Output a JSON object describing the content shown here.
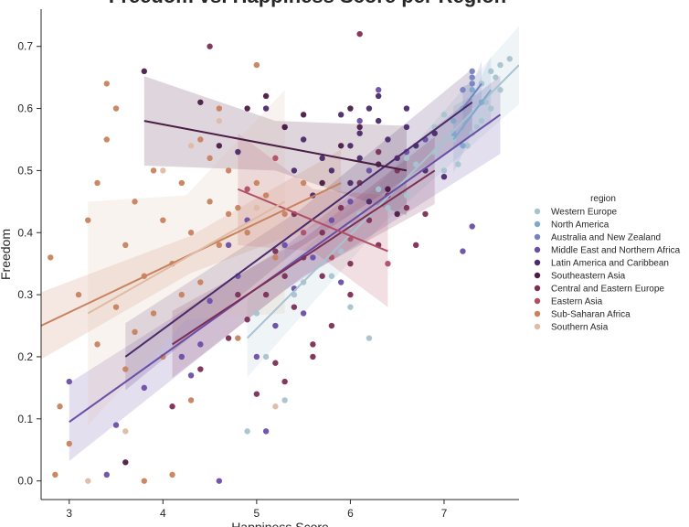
{
  "chart_data": {
    "type": "scatter",
    "title": "Freedom vs. Happiness Score per Region",
    "xlabel": "Happiness Score",
    "ylabel": "Freedom",
    "xlim": [
      2.7,
      7.8
    ],
    "ylim": [
      -0.03,
      0.76
    ],
    "xticks": [
      3,
      4,
      5,
      6,
      7
    ],
    "yticks": [
      0.0,
      0.1,
      0.2,
      0.3,
      0.4,
      0.5,
      0.6,
      0.7
    ],
    "grid": false,
    "legend": {
      "title": "region",
      "placement": "right"
    },
    "series": [
      {
        "name": "Western Europe",
        "color": "#a8c3cf",
        "regression": [
          [
            4.9,
            0.23
          ],
          [
            7.8,
            0.67
          ]
        ],
        "ci_halfwidth": 0.035,
        "points": [
          [
            7.5,
            0.66
          ],
          [
            7.6,
            0.67
          ],
          [
            7.4,
            0.64
          ],
          [
            7.3,
            0.62
          ],
          [
            7.5,
            0.6
          ],
          [
            7.6,
            0.63
          ],
          [
            7.4,
            0.58
          ],
          [
            7.2,
            0.6
          ],
          [
            7.0,
            0.59
          ],
          [
            6.9,
            0.57
          ],
          [
            7.3,
            0.56
          ],
          [
            7.1,
            0.55
          ],
          [
            6.9,
            0.53
          ],
          [
            6.8,
            0.55
          ],
          [
            7.0,
            0.5
          ],
          [
            6.7,
            0.51
          ],
          [
            6.6,
            0.52
          ],
          [
            6.5,
            0.5
          ],
          [
            6.6,
            0.46
          ],
          [
            6.4,
            0.44
          ],
          [
            6.3,
            0.47
          ],
          [
            6.1,
            0.43
          ],
          [
            6.0,
            0.41
          ],
          [
            5.9,
            0.37
          ],
          [
            5.8,
            0.33
          ],
          [
            5.5,
            0.32
          ],
          [
            5.4,
            0.3
          ],
          [
            5.2,
            0.25
          ],
          [
            5.0,
            0.27
          ],
          [
            5.3,
            0.13
          ],
          [
            5.1,
            0.2
          ],
          [
            4.9,
            0.08
          ],
          [
            6.0,
            0.28
          ],
          [
            6.2,
            0.23
          ],
          [
            7.7,
            0.68
          ],
          [
            7.55,
            0.65
          ],
          [
            7.45,
            0.61
          ],
          [
            7.35,
            0.57
          ],
          [
            7.25,
            0.54
          ],
          [
            7.15,
            0.51
          ]
        ]
      },
      {
        "name": "North America",
        "color": "#7fa7cd",
        "regression": [
          [
            7.1,
            0.55
          ],
          [
            7.5,
            0.63
          ]
        ],
        "ci_halfwidth": 0.03,
        "points": [
          [
            7.1,
            0.56
          ],
          [
            7.2,
            0.6
          ],
          [
            7.3,
            0.63
          ],
          [
            7.4,
            0.61
          ],
          [
            7.1,
            0.58
          ],
          [
            7.2,
            0.54
          ]
        ]
      },
      {
        "name": "Australia and New Zealand",
        "color": "#7682c0",
        "regression": [
          [
            7.2,
            0.6
          ],
          [
            7.4,
            0.64
          ]
        ],
        "ci_halfwidth": 0.02,
        "points": [
          [
            7.3,
            0.65
          ],
          [
            7.3,
            0.66
          ],
          [
            7.2,
            0.63
          ],
          [
            7.3,
            0.64
          ]
        ]
      },
      {
        "name": "Middle East and Northern Africa",
        "color": "#6a4ea6",
        "regression": [
          [
            3.0,
            0.095
          ],
          [
            7.6,
            0.59
          ]
        ],
        "ci_halfwidth": 0.035,
        "points": [
          [
            3.0,
            0.16
          ],
          [
            3.5,
            0.09
          ],
          [
            3.8,
            0.15
          ],
          [
            4.2,
            0.2
          ],
          [
            4.4,
            0.22
          ],
          [
            4.5,
            0.29
          ],
          [
            4.7,
            0.38
          ],
          [
            4.8,
            0.33
          ],
          [
            5.0,
            0.2
          ],
          [
            5.2,
            0.25
          ],
          [
            5.4,
            0.31
          ],
          [
            5.5,
            0.27
          ],
          [
            5.6,
            0.36
          ],
          [
            5.8,
            0.42
          ],
          [
            6.0,
            0.45
          ],
          [
            6.2,
            0.5
          ],
          [
            6.4,
            0.47
          ],
          [
            6.6,
            0.53
          ],
          [
            6.8,
            0.55
          ],
          [
            7.2,
            0.37
          ],
          [
            7.3,
            0.41
          ],
          [
            4.6,
            0.0
          ],
          [
            3.4,
            0.01
          ],
          [
            5.1,
            0.08
          ],
          [
            5.9,
            0.32
          ],
          [
            6.1,
            0.58
          ],
          [
            6.3,
            0.63
          ],
          [
            4.9,
            0.42
          ],
          [
            5.3,
            0.38
          ],
          [
            4.3,
            0.17
          ]
        ]
      },
      {
        "name": "Latin America and Caribbean",
        "color": "#4a2a6a",
        "regression": [
          [
            3.6,
            0.2
          ],
          [
            7.3,
            0.61
          ]
        ],
        "ci_halfwidth": 0.03,
        "points": [
          [
            4.8,
            0.53
          ],
          [
            5.1,
            0.6
          ],
          [
            5.3,
            0.57
          ],
          [
            5.5,
            0.55
          ],
          [
            5.7,
            0.52
          ],
          [
            5.9,
            0.59
          ],
          [
            6.0,
            0.54
          ],
          [
            6.1,
            0.56
          ],
          [
            6.2,
            0.6
          ],
          [
            6.3,
            0.58
          ],
          [
            6.4,
            0.55
          ],
          [
            6.5,
            0.52
          ],
          [
            6.6,
            0.57
          ],
          [
            6.7,
            0.54
          ],
          [
            6.8,
            0.5
          ],
          [
            5.6,
            0.46
          ],
          [
            6.0,
            0.48
          ],
          [
            6.3,
            0.62
          ],
          [
            6.1,
            0.52
          ],
          [
            5.8,
            0.5
          ],
          [
            6.6,
            0.6
          ],
          [
            6.9,
            0.56
          ],
          [
            7.0,
            0.49
          ],
          [
            6.2,
            0.45
          ],
          [
            5.4,
            0.5
          ]
        ]
      },
      {
        "name": "Southeastern Asia",
        "color": "#4b1c44",
        "regression": [
          [
            3.8,
            0.58
          ],
          [
            6.6,
            0.5
          ]
        ],
        "ci_halfwidth": 0.04,
        "points": [
          [
            3.8,
            0.66
          ],
          [
            4.4,
            0.61
          ],
          [
            4.9,
            0.6
          ],
          [
            5.1,
            0.62
          ],
          [
            5.3,
            0.57
          ],
          [
            5.5,
            0.59
          ],
          [
            5.9,
            0.54
          ],
          [
            6.1,
            0.57
          ],
          [
            6.3,
            0.51
          ],
          [
            6.4,
            0.47
          ],
          [
            6.5,
            0.43
          ],
          [
            4.6,
            0.54
          ],
          [
            5.7,
            0.48
          ],
          [
            6.0,
            0.6
          ],
          [
            3.6,
            0.03
          ]
        ]
      },
      {
        "name": "Central and Eastern Europe",
        "color": "#7c2e55",
        "regression": [
          [
            4.1,
            0.22
          ],
          [
            6.9,
            0.5
          ]
        ],
        "ci_halfwidth": 0.03,
        "points": [
          [
            4.1,
            0.12
          ],
          [
            4.4,
            0.18
          ],
          [
            4.7,
            0.23
          ],
          [
            4.9,
            0.26
          ],
          [
            5.1,
            0.3
          ],
          [
            5.2,
            0.19
          ],
          [
            5.3,
            0.33
          ],
          [
            5.4,
            0.28
          ],
          [
            5.5,
            0.36
          ],
          [
            5.6,
            0.22
          ],
          [
            5.7,
            0.4
          ],
          [
            5.8,
            0.25
          ],
          [
            5.9,
            0.44
          ],
          [
            6.0,
            0.3
          ],
          [
            6.1,
            0.48
          ],
          [
            6.2,
            0.42
          ],
          [
            6.3,
            0.38
          ],
          [
            6.4,
            0.46
          ],
          [
            6.5,
            0.5
          ],
          [
            6.6,
            0.44
          ],
          [
            6.1,
            0.72
          ],
          [
            5.0,
            0.14
          ],
          [
            5.3,
            0.16
          ],
          [
            5.6,
            0.2
          ],
          [
            6.0,
            0.35
          ],
          [
            6.3,
            0.53
          ],
          [
            5.4,
            0.43
          ],
          [
            5.7,
            0.33
          ],
          [
            4.8,
            0.3
          ],
          [
            6.7,
            0.38
          ],
          [
            6.8,
            0.43
          ],
          [
            4.5,
            0.7
          ],
          [
            5.2,
            0.37
          ]
        ]
      },
      {
        "name": "Eastern Asia",
        "color": "#b04e66",
        "regression": [
          [
            4.8,
            0.47
          ],
          [
            6.4,
            0.37
          ]
        ],
        "ci_halfwidth": 0.05,
        "points": [
          [
            4.9,
            0.47
          ],
          [
            5.2,
            0.52
          ],
          [
            5.5,
            0.4
          ],
          [
            5.8,
            0.36
          ],
          [
            6.0,
            0.39
          ],
          [
            6.4,
            0.35
          ]
        ]
      },
      {
        "name": "Sub-Saharan Africa",
        "color": "#c8825e",
        "regression": [
          [
            2.7,
            0.25
          ],
          [
            5.9,
            0.48
          ]
        ],
        "ci_halfwidth": 0.03,
        "points": [
          [
            2.8,
            0.36
          ],
          [
            2.9,
            0.12
          ],
          [
            3.0,
            0.06
          ],
          [
            3.1,
            0.3
          ],
          [
            3.2,
            0.42
          ],
          [
            3.3,
            0.48
          ],
          [
            3.4,
            0.55
          ],
          [
            3.5,
            0.6
          ],
          [
            3.6,
            0.38
          ],
          [
            3.7,
            0.45
          ],
          [
            3.8,
            0.33
          ],
          [
            3.9,
            0.5
          ],
          [
            4.0,
            0.42
          ],
          [
            4.1,
            0.35
          ],
          [
            4.2,
            0.48
          ],
          [
            4.3,
            0.4
          ],
          [
            4.4,
            0.55
          ],
          [
            4.5,
            0.45
          ],
          [
            4.6,
            0.38
          ],
          [
            4.7,
            0.5
          ],
          [
            4.8,
            0.44
          ],
          [
            4.9,
            0.4
          ],
          [
            5.0,
            0.48
          ],
          [
            5.1,
            0.46
          ],
          [
            5.2,
            0.36
          ],
          [
            5.3,
            0.43
          ],
          [
            5.5,
            0.48
          ],
          [
            3.4,
            0.64
          ],
          [
            3.8,
            0.0
          ],
          [
            4.1,
            0.01
          ],
          [
            4.3,
            0.13
          ],
          [
            4.0,
            0.2
          ],
          [
            3.7,
            0.24
          ],
          [
            3.5,
            0.28
          ],
          [
            3.3,
            0.22
          ],
          [
            2.85,
            0.01
          ],
          [
            4.6,
            0.6
          ],
          [
            5.0,
            0.67
          ],
          [
            4.2,
            0.3
          ],
          [
            4.4,
            0.32
          ],
          [
            3.6,
            0.18
          ],
          [
            4.8,
            0.23
          ],
          [
            3.9,
            0.27
          ],
          [
            4.5,
            0.52
          ],
          [
            4.7,
            0.43
          ]
        ]
      },
      {
        "name": "Southern Asia",
        "color": "#dfbba4",
        "regression": [
          [
            3.2,
            0.27
          ],
          [
            5.3,
            0.45
          ]
        ],
        "ci_halfwidth": 0.1,
        "points": [
          [
            3.2,
            0.0
          ],
          [
            3.6,
            0.08
          ],
          [
            4.0,
            0.5
          ],
          [
            4.3,
            0.54
          ],
          [
            4.6,
            0.58
          ],
          [
            5.0,
            0.44
          ],
          [
            5.2,
            0.12
          ],
          [
            5.4,
            0.4
          ]
        ]
      }
    ]
  }
}
